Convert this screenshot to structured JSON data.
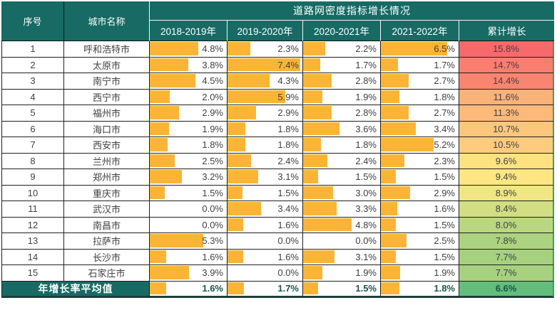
{
  "colors": {
    "header_bg": "#176B64",
    "header_text": "#FFFFFF",
    "bar": "#FCB434",
    "body_text": "#404040",
    "avg_value_text": "#1A554E",
    "grid_border": "#1F1F1F",
    "total_edge": "#3DA05A",
    "scale_red": "#F8696B",
    "scale_yellow": "#FFEB84",
    "scale_green": "#63BE7B"
  },
  "chart_data": {
    "type": "table",
    "title": "道路网密度指标增长情况",
    "columns": [
      "序号",
      "城市名称",
      "2018-2019年",
      "2019-2020年",
      "2020-2021年",
      "2021-2022年",
      "累计增长"
    ],
    "unit": "%",
    "bar_max": 7.4,
    "rows": [
      {
        "no": "1",
        "city": "呼和浩特市",
        "values": [
          4.8,
          2.3,
          2.2,
          6.5
        ],
        "total": 15.8,
        "total_color": "#F8696B"
      },
      {
        "no": "2",
        "city": "太原市",
        "values": [
          3.8,
          7.4,
          1.7,
          1.7
        ],
        "total": 14.7,
        "total_color": "#F97E6F"
      },
      {
        "no": "3",
        "city": "南宁市",
        "values": [
          4.5,
          4.3,
          2.8,
          2.7
        ],
        "total": 14.4,
        "total_color": "#F98470"
      },
      {
        "no": "4",
        "city": "西宁市",
        "values": [
          2.0,
          5.9,
          1.9,
          1.8
        ],
        "total": 11.6,
        "total_color": "#FBB279"
      },
      {
        "no": "5",
        "city": "福州市",
        "values": [
          2.9,
          2.9,
          2.8,
          2.7
        ],
        "total": 11.3,
        "total_color": "#FCB97A"
      },
      {
        "no": "6",
        "city": "海口市",
        "values": [
          1.9,
          1.8,
          3.6,
          3.4
        ],
        "total": 10.7,
        "total_color": "#FDC67D"
      },
      {
        "no": "7",
        "city": "西安市",
        "values": [
          1.8,
          1.8,
          1.8,
          5.2
        ],
        "total": 10.5,
        "total_color": "#FDCB7E"
      },
      {
        "no": "8",
        "city": "兰州市",
        "values": [
          2.5,
          2.4,
          2.4,
          2.3
        ],
        "total": 9.6,
        "total_color": "#FEE282"
      },
      {
        "no": "9",
        "city": "郑州市",
        "values": [
          3.2,
          3.1,
          1.5,
          1.5
        ],
        "total": 9.4,
        "total_color": "#FEE683"
      },
      {
        "no": "10",
        "city": "重庆市",
        "values": [
          1.5,
          1.5,
          3.0,
          2.9
        ],
        "total": 8.9,
        "total_color": "#F0E783"
      },
      {
        "no": "11",
        "city": "武汉市",
        "values": [
          0.0,
          3.4,
          3.3,
          1.6
        ],
        "total": 8.4,
        "total_color": "#D1DE81"
      },
      {
        "no": "12",
        "city": "南昌市",
        "values": [
          0.0,
          1.6,
          4.8,
          1.5
        ],
        "total": 8.0,
        "total_color": "#B9D780"
      },
      {
        "no": "13",
        "city": "拉萨市",
        "values": [
          5.3,
          0.0,
          0.0,
          2.5
        ],
        "total": 7.8,
        "total_color": "#ACD37F"
      },
      {
        "no": "14",
        "city": "长沙市",
        "values": [
          1.6,
          1.6,
          3.1,
          1.5
        ],
        "total": 7.7,
        "total_color": "#A6D17F"
      },
      {
        "no": "15",
        "city": "石家庄市",
        "values": [
          3.9,
          0.0,
          1.9,
          1.9
        ],
        "total": 7.7,
        "total_color": "#A6D17F"
      }
    ],
    "average": {
      "label": "年增长率平均值",
      "values": [
        1.6,
        1.7,
        1.5,
        1.8
      ],
      "total": 6.6,
      "total_color": "#63BE7B"
    }
  }
}
